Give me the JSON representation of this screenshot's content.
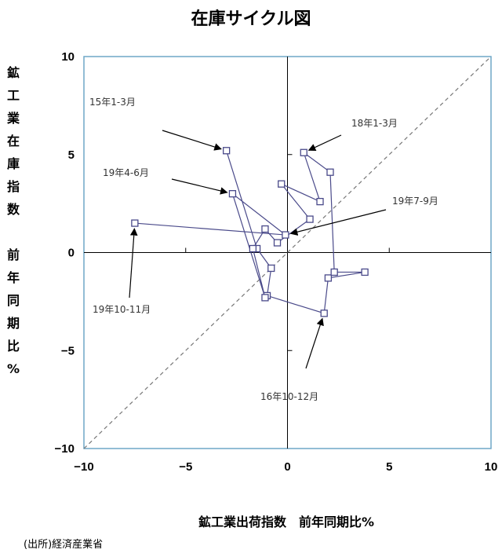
{
  "title": "在庫サイクル図",
  "source": "(出所)経済産業省",
  "chart_data": {
    "type": "scatter",
    "title": "在庫サイクル図",
    "xlabel": "鉱工業出荷指数　前年同期比%",
    "ylabel": [
      "鉱",
      "工",
      "業",
      "在",
      "庫",
      "指",
      "数",
      "",
      "前",
      "年",
      "同",
      "期",
      "比",
      "%"
    ],
    "xlim": [
      -10,
      10
    ],
    "ylim": [
      -10,
      10
    ],
    "xticks": [
      "−10",
      "−5",
      "0",
      "5",
      "10"
    ],
    "yticks": [
      "10",
      "5",
      "0",
      "−5",
      "−10"
    ],
    "diagonal": "y = x (dashed)",
    "points": [
      {
        "x": -3.0,
        "y": 5.2
      },
      {
        "x": -1.5,
        "y": 0.2
      },
      {
        "x": -0.8,
        "y": -0.8
      },
      {
        "x": -1.0,
        "y": -2.2
      },
      {
        "x": 1.8,
        "y": -3.1
      },
      {
        "x": 2.0,
        "y": -1.3
      },
      {
        "x": 3.8,
        "y": -1.0
      },
      {
        "x": 2.3,
        "y": -1.0
      },
      {
        "x": 2.1,
        "y": 4.1
      },
      {
        "x": 0.8,
        "y": 5.1
      },
      {
        "x": 1.6,
        "y": 2.6
      },
      {
        "x": -0.3,
        "y": 3.5
      },
      {
        "x": 1.1,
        "y": 1.7
      },
      {
        "x": -0.5,
        "y": 0.5
      },
      {
        "x": -1.1,
        "y": 1.2
      },
      {
        "x": -1.7,
        "y": 0.2
      },
      {
        "x": -1.1,
        "y": -2.3
      },
      {
        "x": -2.7,
        "y": 3.0
      },
      {
        "x": -0.1,
        "y": 0.9
      },
      {
        "x": -7.5,
        "y": 1.5
      }
    ],
    "annotations": [
      {
        "text": "15年1-3月",
        "target": 0
      },
      {
        "text": "18年1-3月",
        "target": 9
      },
      {
        "text": "19年4-6月",
        "target": 17
      },
      {
        "text": "19年7-9月",
        "target": 18
      },
      {
        "text": "19年10-11月",
        "target": 19
      },
      {
        "text": "16年10-12月",
        "target": 4
      }
    ],
    "colors": {
      "line": "#4a4a8a",
      "frame": "#6fa7c7",
      "diagonal": "#777777"
    }
  }
}
